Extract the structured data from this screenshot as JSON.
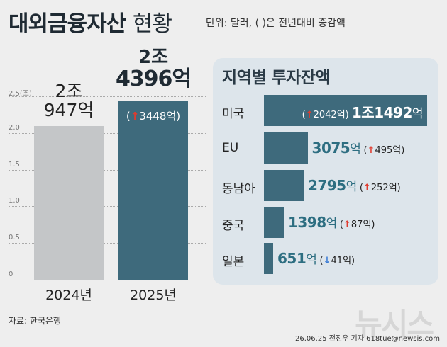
{
  "title": {
    "bold": "대외금융자산",
    "light": "현황"
  },
  "unit_note": "단위: 달러, ( )은 전년대비 증감액",
  "source": "자료: 한국은행",
  "credit": "26.06.25 전진우 기자 618tue@newsis.com",
  "watermark": "뉴시스",
  "colors": {
    "bar_prev": "#c4c6c8",
    "bar_curr": "#3e6a7c",
    "region_bar": "#3e6a7c",
    "up": "#e03b2e",
    "down": "#3a7bd5",
    "value_text": "#2d6e81"
  },
  "chart_data": [
    {
      "type": "bar",
      "categories": [
        "2024년",
        "2025년"
      ],
      "values": [
        2.0947,
        2.4396
      ],
      "ylim": [
        0,
        2.5
      ],
      "yticks": [
        "0",
        "0.5",
        "1.0",
        "1.5",
        "2.0",
        "2.5(조)"
      ],
      "grid": true,
      "value_labels": [
        {
          "line1": "2조",
          "line2": "947억"
        },
        {
          "line1": "2조",
          "line2": "4396억",
          "change": "3448억",
          "direction": "up"
        }
      ]
    },
    {
      "type": "bar",
      "orientation": "horizontal",
      "title": "지역별 투자잔액",
      "categories": [
        "미국",
        "EU",
        "동남아",
        "중국",
        "일본"
      ],
      "values": [
        11492,
        3075,
        2795,
        1398,
        651
      ],
      "value_labels": [
        {
          "main": "1조1492",
          "unit": "억",
          "change": "2042억",
          "direction": "up"
        },
        {
          "main": "3075",
          "unit": "억",
          "change": "495억",
          "direction": "up"
        },
        {
          "main": "2795",
          "unit": "억",
          "change": "252억",
          "direction": "up"
        },
        {
          "main": "1398",
          "unit": "억",
          "change": "87억",
          "direction": "up"
        },
        {
          "main": "651",
          "unit": "억",
          "change": "41억",
          "direction": "down"
        }
      ]
    }
  ]
}
